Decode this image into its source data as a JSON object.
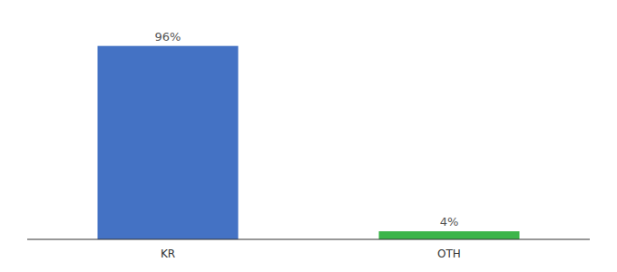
{
  "chart_data": {
    "type": "bar",
    "categories": [
      "KR",
      "OTH"
    ],
    "values": [
      96,
      4
    ],
    "value_labels": [
      "96%",
      "4%"
    ],
    "colors": [
      "#4472c4",
      "#3cb54a"
    ],
    "ylim": [
      0,
      108
    ],
    "data_labels": true,
    "tick_labels": "x"
  }
}
